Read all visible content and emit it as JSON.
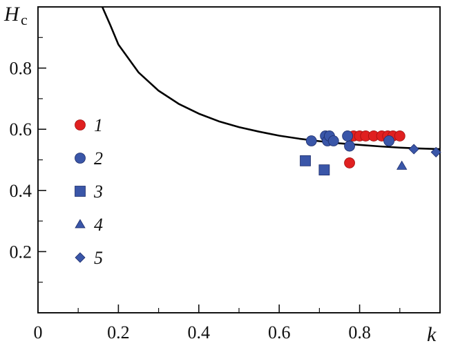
{
  "chart_data": {
    "type": "scatter",
    "title": "",
    "xlabel": "k",
    "ylabel": {
      "main": "H",
      "subscript": "c"
    },
    "xlim": [
      0,
      1.0
    ],
    "ylim": [
      0,
      1.0
    ],
    "x_ticks": [
      0,
      0.2,
      0.4,
      0.6,
      0.8
    ],
    "x_tick_labels": [
      "0",
      "0.2",
      "0.4",
      "0.6",
      "0.8"
    ],
    "y_ticks": [
      0.2,
      0.4,
      0.6,
      0.8
    ],
    "y_tick_labels": [
      "0.2",
      "0.4",
      "0.6",
      "0.8"
    ],
    "grid": false,
    "legend_position": "left-middle",
    "colors": {
      "red": "#e02020",
      "blue": "#3a56a8",
      "curve": "#000000"
    },
    "curve": {
      "points": [
        [
          0.16,
          1.0
        ],
        [
          0.18,
          0.94
        ],
        [
          0.2,
          0.877
        ],
        [
          0.25,
          0.786
        ],
        [
          0.3,
          0.726
        ],
        [
          0.35,
          0.683
        ],
        [
          0.4,
          0.651
        ],
        [
          0.45,
          0.626
        ],
        [
          0.5,
          0.607
        ],
        [
          0.55,
          0.592
        ],
        [
          0.6,
          0.579
        ],
        [
          0.65,
          0.569
        ],
        [
          0.7,
          0.561
        ],
        [
          0.75,
          0.554
        ],
        [
          0.8,
          0.549
        ],
        [
          0.85,
          0.544
        ],
        [
          0.9,
          0.54
        ],
        [
          0.95,
          0.537
        ],
        [
          1.0,
          0.535
        ]
      ]
    },
    "series": [
      {
        "name": "1",
        "marker": "circle",
        "color": "#e02020",
        "points": [
          [
            0.775,
            0.49
          ],
          [
            0.785,
            0.578
          ],
          [
            0.8,
            0.578
          ],
          [
            0.815,
            0.578
          ],
          [
            0.835,
            0.578
          ],
          [
            0.855,
            0.578
          ],
          [
            0.87,
            0.578
          ],
          [
            0.883,
            0.578
          ],
          [
            0.9,
            0.578
          ]
        ]
      },
      {
        "name": "2",
        "marker": "circle",
        "color": "#3a56a8",
        "points": [
          [
            0.68,
            0.562
          ],
          [
            0.715,
            0.578
          ],
          [
            0.72,
            0.562
          ],
          [
            0.725,
            0.578
          ],
          [
            0.735,
            0.562
          ],
          [
            0.77,
            0.578
          ],
          [
            0.775,
            0.545
          ],
          [
            0.873,
            0.562
          ]
        ]
      },
      {
        "name": "3",
        "marker": "square",
        "color": "#3a56a8",
        "points": [
          [
            0.665,
            0.497
          ],
          [
            0.712,
            0.467
          ]
        ]
      },
      {
        "name": "4",
        "marker": "triangle",
        "color": "#3a56a8",
        "points": [
          [
            0.905,
            0.48
          ]
        ]
      },
      {
        "name": "5",
        "marker": "diamond",
        "color": "#3a56a8",
        "points": [
          [
            0.935,
            0.535
          ],
          [
            0.99,
            0.525
          ]
        ]
      }
    ]
  }
}
